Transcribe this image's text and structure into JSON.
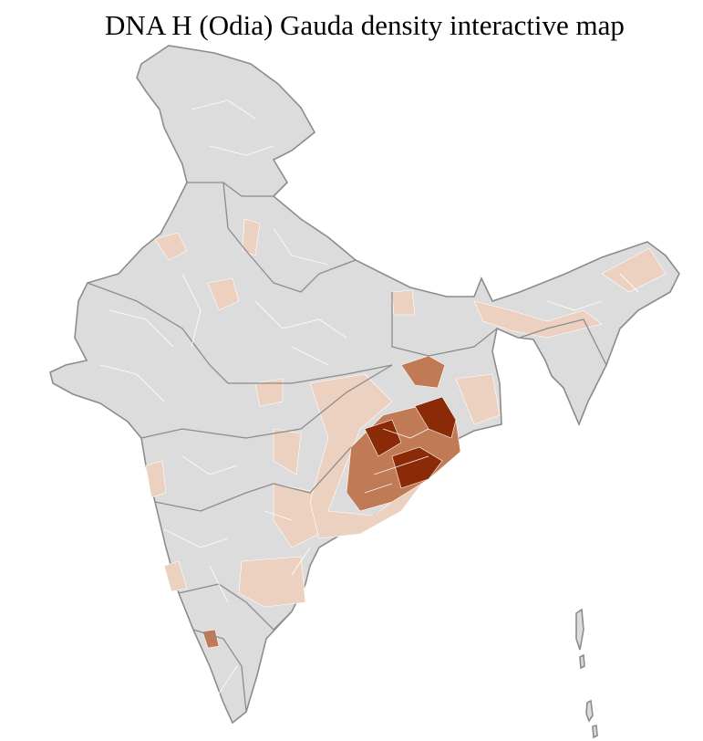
{
  "title": "DNA H (Odia) Gauda density interactive map"
}
